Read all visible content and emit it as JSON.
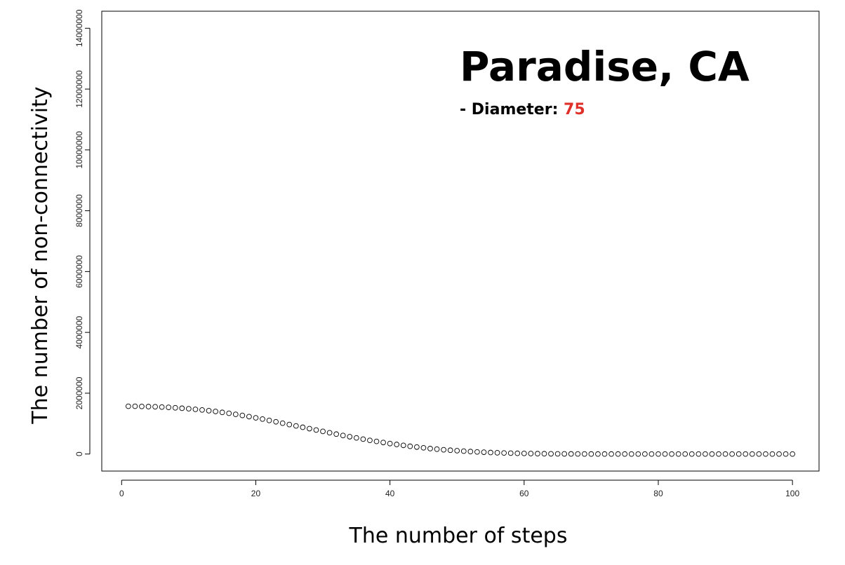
{
  "chart_data": {
    "type": "scatter",
    "title": "Paradise, CA",
    "annotation_label": "- Diameter:",
    "annotation_value": 75,
    "x_label": "The number of steps",
    "y_label": "The number of non-connectivity",
    "color": "#000000",
    "annotation_color": "#e0302a",
    "xlim": [
      -2.96,
      103.96
    ],
    "ylim": [
      -560000,
      14560000
    ],
    "xticks": [
      0,
      20,
      40,
      60,
      80,
      100
    ],
    "yticks": [
      0,
      2000000,
      4000000,
      6000000,
      8000000,
      10000000,
      12000000,
      14000000
    ],
    "x": [
      1,
      2,
      3,
      4,
      5,
      6,
      7,
      8,
      9,
      10,
      11,
      12,
      13,
      14,
      15,
      16,
      17,
      18,
      19,
      20,
      21,
      22,
      23,
      24,
      25,
      26,
      27,
      28,
      29,
      30,
      31,
      32,
      33,
      34,
      35,
      36,
      37,
      38,
      39,
      40,
      41,
      42,
      43,
      44,
      45,
      46,
      47,
      48,
      49,
      50,
      51,
      52,
      53,
      54,
      55,
      56,
      57,
      58,
      59,
      60,
      61,
      62,
      63,
      64,
      65,
      66,
      67,
      68,
      69,
      70,
      71,
      72,
      73,
      74,
      75,
      76,
      77,
      78,
      79,
      80,
      81,
      82,
      83,
      84,
      85,
      86,
      87,
      88,
      89,
      90,
      91,
      92,
      93,
      94,
      95,
      96,
      97,
      98,
      99,
      100
    ],
    "values": [
      1570000,
      1570000,
      1565000,
      1560000,
      1555000,
      1545000,
      1535000,
      1520000,
      1505000,
      1490000,
      1470000,
      1450000,
      1425000,
      1400000,
      1370000,
      1340000,
      1305000,
      1270000,
      1230000,
      1190000,
      1150000,
      1105000,
      1060000,
      1015000,
      970000,
      925000,
      880000,
      835000,
      790000,
      745000,
      700000,
      655000,
      610000,
      570000,
      530000,
      490000,
      450000,
      415000,
      380000,
      345000,
      315000,
      285000,
      255000,
      230000,
      205000,
      180000,
      160000,
      140000,
      125000,
      110000,
      95000,
      82000,
      70000,
      60000,
      50000,
      42000,
      35000,
      29000,
      24000,
      20000,
      16000,
      13000,
      10000,
      8000,
      6000,
      5000,
      4000,
      3000,
      2000,
      1500,
      1000,
      1000,
      1000,
      1000,
      1000,
      800,
      800,
      800,
      800,
      800,
      600,
      600,
      600,
      600,
      600,
      400,
      400,
      400,
      400,
      400,
      300,
      300,
      300,
      300,
      300,
      200,
      200,
      200,
      200,
      200
    ]
  }
}
